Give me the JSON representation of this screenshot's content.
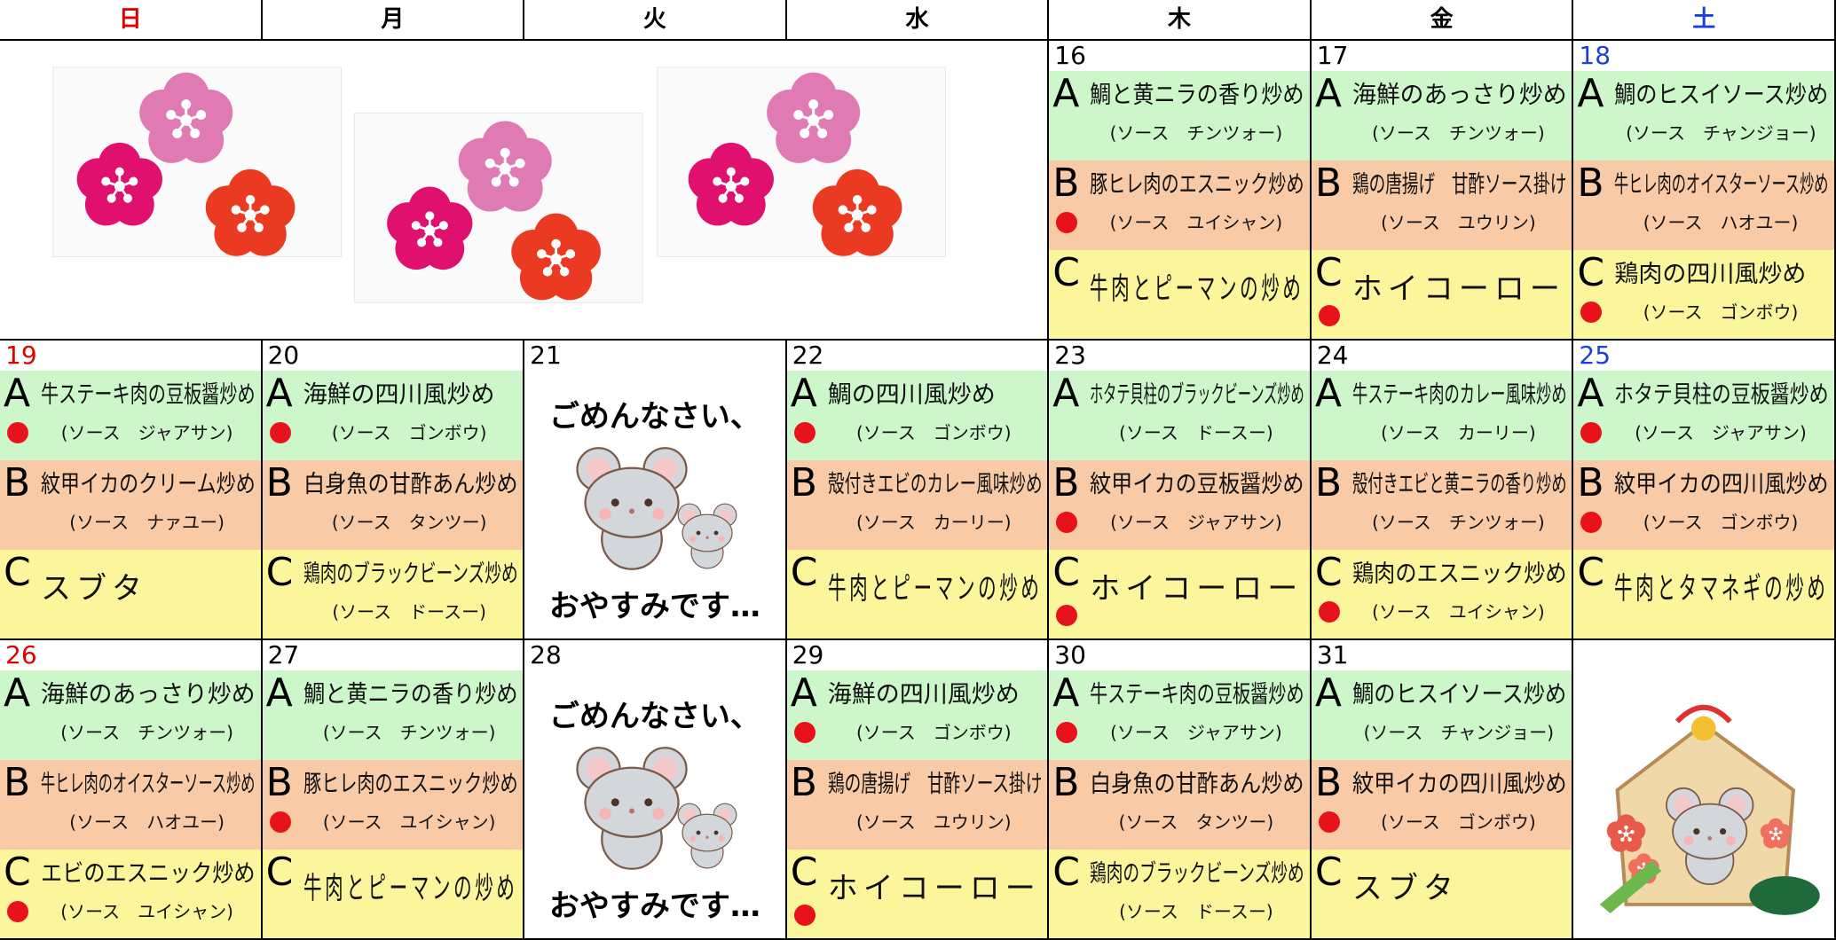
{
  "header": {
    "days": [
      "日",
      "月",
      "火",
      "水",
      "木",
      "金",
      "土"
    ]
  },
  "weeks": [
    {
      "cells": [
        {
          "kind": "plum-picture"
        },
        {
          "kind": "menu",
          "date": 16,
          "menu": [
            {
              "label": "A",
              "name": "鯛と黄ニラの香り炒め",
              "sauce": "(ソース　チンツォー)",
              "dot": false
            },
            {
              "label": "B",
              "name": "豚ヒレ肉のエスニック炒め",
              "sauce": "(ソース　ユイシャン)",
              "dot": true
            },
            {
              "label": "C",
              "name": "牛肉とピーマンの炒め",
              "dot": false
            }
          ]
        },
        {
          "kind": "menu",
          "date": 17,
          "menu": [
            {
              "label": "A",
              "name": "海鮮のあっさり炒め",
              "sauce": "(ソース　チンツォー)",
              "dot": false
            },
            {
              "label": "B",
              "name": "鶏の唐揚げ　甘酢ソース掛け",
              "sauce": "(ソース　ユウリン)",
              "dot": false
            },
            {
              "label": "C",
              "name": "ホイコーロー",
              "dot": true
            }
          ]
        },
        {
          "kind": "menu",
          "date": 18,
          "menu": [
            {
              "label": "A",
              "name": "鯛のヒスイソース炒め",
              "sauce": "(ソース　チャンジョー)",
              "dot": false
            },
            {
              "label": "B",
              "name": "牛ヒレ肉のオイスターソース炒め",
              "sauce": "(ソース　ハオユー)",
              "dot": false
            },
            {
              "label": "C",
              "name": "鶏肉の四川風炒め",
              "sauce": "(ソース　ゴンボウ)",
              "dot": true
            }
          ]
        }
      ]
    },
    {
      "cells": [
        {
          "kind": "menu",
          "date": 19,
          "menu": [
            {
              "label": "A",
              "name": "牛ステーキ肉の豆板醤炒め",
              "sauce": "(ソース　ジャアサン)",
              "dot": true
            },
            {
              "label": "B",
              "name": "紋甲イカのクリーム炒め",
              "sauce": "(ソース　ナァユー)",
              "dot": false
            },
            {
              "label": "C",
              "name": "スブタ",
              "dot": false
            }
          ]
        },
        {
          "kind": "menu",
          "date": 20,
          "menu": [
            {
              "label": "A",
              "name": "海鮮の四川風炒め",
              "sauce": "(ソース　ゴンボウ)",
              "dot": true
            },
            {
              "label": "B",
              "name": "白身魚の甘酢あん炒め",
              "sauce": "(ソース　タンツー)",
              "dot": false
            },
            {
              "label": "C",
              "name": "鶏肉のブラックビーンズ炒め",
              "sauce": "(ソース　ドースー)",
              "dot": false
            }
          ]
        },
        {
          "kind": "closed",
          "date": 21,
          "lines": [
            "ごめんなさい、",
            "おやすみです…"
          ]
        },
        {
          "kind": "menu",
          "date": 22,
          "menu": [
            {
              "label": "A",
              "name": "鯛の四川風炒め",
              "sauce": "(ソース　ゴンボウ)",
              "dot": true
            },
            {
              "label": "B",
              "name": "殻付きエビのカレー風味炒め",
              "sauce": "(ソース　カーリー)",
              "dot": false
            },
            {
              "label": "C",
              "name": "牛肉とピーマンの炒め",
              "dot": false
            }
          ]
        },
        {
          "kind": "menu",
          "date": 23,
          "menu": [
            {
              "label": "A",
              "name": "ホタテ貝柱のブラックビーンズ炒め",
              "sauce": "(ソース　ドースー)",
              "dot": false
            },
            {
              "label": "B",
              "name": "紋甲イカの豆板醤炒め",
              "sauce": "(ソース　ジャアサン)",
              "dot": true
            },
            {
              "label": "C",
              "name": "ホイコーロー",
              "dot": true
            }
          ]
        },
        {
          "kind": "menu",
          "date": 24,
          "menu": [
            {
              "label": "A",
              "name": "牛ステーキ肉のカレー風味炒め",
              "sauce": "(ソース　カーリー)",
              "dot": false
            },
            {
              "label": "B",
              "name": "殻付きエビと黄ニラの香り炒め",
              "sauce": "(ソース　チンツォー)",
              "dot": false
            },
            {
              "label": "C",
              "name": "鶏肉のエスニック炒め",
              "sauce": "(ソース　ユイシャン)",
              "dot": true
            }
          ]
        },
        {
          "kind": "menu",
          "date": 25,
          "menu": [
            {
              "label": "A",
              "name": "ホタテ貝柱の豆板醤炒め",
              "sauce": "(ソース　ジャアサン)",
              "dot": true
            },
            {
              "label": "B",
              "name": "紋甲イカの四川風炒め",
              "sauce": "(ソース　ゴンボウ)",
              "dot": true
            },
            {
              "label": "C",
              "name": "牛肉とタマネギの炒め",
              "dot": false
            }
          ]
        }
      ]
    },
    {
      "cells": [
        {
          "kind": "menu",
          "date": 26,
          "menu": [
            {
              "label": "A",
              "name": "海鮮のあっさり炒め",
              "sauce": "(ソース　チンツォー)",
              "dot": false
            },
            {
              "label": "B",
              "name": "牛ヒレ肉のオイスターソース炒め",
              "sauce": "(ソース　ハオユー)",
              "dot": false
            },
            {
              "label": "C",
              "name": "エビのエスニック炒め",
              "sauce": "(ソース　ユイシャン)",
              "dot": true
            }
          ]
        },
        {
          "kind": "menu",
          "date": 27,
          "menu": [
            {
              "label": "A",
              "name": "鯛と黄ニラの香り炒め",
              "sauce": "(ソース　チンツォー)",
              "dot": false
            },
            {
              "label": "B",
              "name": "豚ヒレ肉のエスニック炒め",
              "sauce": "(ソース　ユイシャン)",
              "dot": true
            },
            {
              "label": "C",
              "name": "牛肉とピーマンの炒め",
              "dot": false
            }
          ]
        },
        {
          "kind": "closed",
          "date": 28,
          "lines": [
            "ごめんなさい、",
            "おやすみです…"
          ]
        },
        {
          "kind": "menu",
          "date": 29,
          "menu": [
            {
              "label": "A",
              "name": "海鮮の四川風炒め",
              "sauce": "(ソース　ゴンボウ)",
              "dot": true
            },
            {
              "label": "B",
              "name": "鶏の唐揚げ　甘酢ソース掛け",
              "sauce": "(ソース　ユウリン)",
              "dot": false
            },
            {
              "label": "C",
              "name": "ホイコーロー",
              "dot": true
            }
          ]
        },
        {
          "kind": "menu",
          "date": 30,
          "menu": [
            {
              "label": "A",
              "name": "牛ステーキ肉の豆板醤炒め",
              "sauce": "(ソース　ジャアサン)",
              "dot": true
            },
            {
              "label": "B",
              "name": "白身魚の甘酢あん炒め",
              "sauce": "(ソース　タンツー)",
              "dot": false
            },
            {
              "label": "C",
              "name": "鶏肉のブラックビーンズ炒め",
              "sauce": "(ソース　ドースー)",
              "dot": false
            }
          ]
        },
        {
          "kind": "menu",
          "date": 31,
          "menu": [
            {
              "label": "A",
              "name": "鯛のヒスイソース炒め",
              "sauce": "(ソース　チャンジョー)",
              "dot": false
            },
            {
              "label": "B",
              "name": "紋甲イカの四川風炒め",
              "sauce": "(ソース　ゴンボウ)",
              "dot": true
            },
            {
              "label": "C",
              "name": "スブタ",
              "dot": false
            }
          ]
        },
        {
          "kind": "ema-picture"
        }
      ]
    }
  ]
}
